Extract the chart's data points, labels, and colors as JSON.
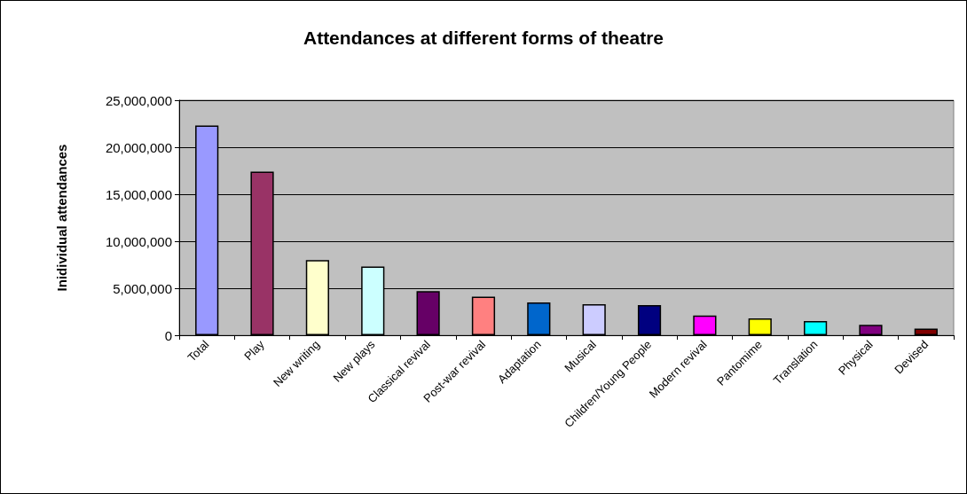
{
  "chart_data": {
    "type": "bar",
    "title": "Attendances at different forms of theatre",
    "ylabel": "Inidividual attendances",
    "categories": [
      "Total",
      "Play",
      "New writing",
      "New plays",
      "Classical revival",
      "Post-war revival",
      "Adaptation",
      "Musical",
      "Children/Young People",
      "Modern revival",
      "Pantomime",
      "Translation",
      "Physical",
      "Devised"
    ],
    "values": [
      22300000,
      17400000,
      8000000,
      7300000,
      4700000,
      4100000,
      3500000,
      3300000,
      3200000,
      2100000,
      1800000,
      1500000,
      1100000,
      700000
    ],
    "colors": [
      "#9999ff",
      "#993366",
      "#ffffcc",
      "#ccffff",
      "#660066",
      "#ff8080",
      "#0066cc",
      "#ccccff",
      "#000080",
      "#ff00ff",
      "#ffff00",
      "#00ffff",
      "#800080",
      "#800000"
    ],
    "ylim": [
      0,
      25000000
    ],
    "yticks": [
      0,
      {
        "value": 5000000,
        "label": "5,000,000"
      },
      {
        "value": 10000000,
        "label": "10,000,000"
      },
      {
        "value": 15000000,
        "label": "15,000,000"
      },
      {
        "value": 20000000,
        "label": "20,000,000"
      },
      {
        "value": 25000000,
        "label": "25,000,000"
      }
    ],
    "grid": "y"
  }
}
